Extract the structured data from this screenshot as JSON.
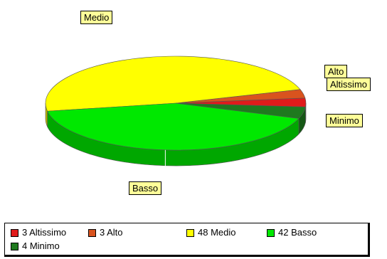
{
  "chart_data": {
    "type": "pie",
    "slices": [
      {
        "label": "Altissimo",
        "value": 3,
        "color": "#e01b1b"
      },
      {
        "label": "Alto",
        "value": 3,
        "color": "#d9531e"
      },
      {
        "label": "Medio",
        "value": 48,
        "color": "#ffff00"
      },
      {
        "label": "Basso",
        "value": 42,
        "color": "#00e800"
      },
      {
        "label": "Minimo",
        "value": 4,
        "color": "#1f7a1f"
      }
    ],
    "legend": {
      "placement": "bottom",
      "entries": [
        "3 Altissimo",
        "3 Alto",
        "48 Medio",
        "42 Basso",
        "4 Minimo"
      ]
    }
  }
}
